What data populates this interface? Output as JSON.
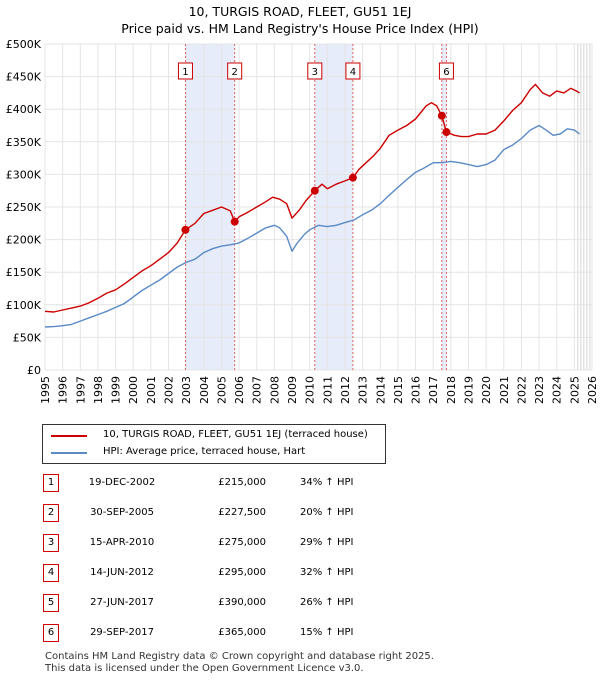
{
  "title": {
    "line1": "10, TURGIS ROAD, FLEET, GU51 1EJ",
    "line2": "Price paid vs. HM Land Registry's House Price Index (HPI)"
  },
  "chart_data": {
    "type": "line",
    "xlim": [
      1995,
      2026
    ],
    "ylim": [
      0,
      500000
    ],
    "xticks": [
      "1995",
      "1996",
      "1997",
      "1998",
      "1999",
      "2000",
      "2001",
      "2002",
      "2003",
      "2004",
      "2005",
      "2006",
      "2007",
      "2008",
      "2009",
      "2010",
      "2011",
      "2012",
      "2013",
      "2014",
      "2015",
      "2016",
      "2017",
      "2018",
      "2019",
      "2020",
      "2021",
      "2022",
      "2023",
      "2024",
      "2025",
      "2026"
    ],
    "yticks": [
      {
        "value": 0,
        "label": "£0"
      },
      {
        "value": 50000,
        "label": "£50K"
      },
      {
        "value": 100000,
        "label": "£100K"
      },
      {
        "value": 150000,
        "label": "£150K"
      },
      {
        "value": 200000,
        "label": "£200K"
      },
      {
        "value": 250000,
        "label": "£250K"
      },
      {
        "value": 300000,
        "label": "£300K"
      },
      {
        "value": 350000,
        "label": "£350K"
      },
      {
        "value": 400000,
        "label": "£400K"
      },
      {
        "value": 450000,
        "label": "£450K"
      },
      {
        "value": 500000,
        "label": "£500K"
      }
    ],
    "series": [
      {
        "name": "10, TURGIS ROAD, FLEET, GU51 1EJ (terraced house)",
        "color": "#cc0000",
        "x": [
          1995.0,
          1995.5,
          1996.0,
          1996.5,
          1997.0,
          1997.5,
          1998.0,
          1998.5,
          1999.0,
          1999.5,
          2000.0,
          2000.5,
          2001.0,
          2001.5,
          2002.0,
          2002.5,
          2002.96,
          2003.5,
          2004.0,
          2004.5,
          2005.0,
          2005.5,
          2005.75,
          2006.0,
          2006.5,
          2007.0,
          2007.5,
          2007.9,
          2008.3,
          2008.7,
          2009.0,
          2009.4,
          2009.8,
          2010.29,
          2010.7,
          2011.0,
          2011.5,
          2012.0,
          2012.45,
          2012.8,
          2013.2,
          2013.6,
          2014.0,
          2014.5,
          2015.0,
          2015.5,
          2016.0,
          2016.3,
          2016.6,
          2016.9,
          2017.2,
          2017.49,
          2017.75,
          2018.2,
          2018.6,
          2019.0,
          2019.5,
          2020.0,
          2020.5,
          2021.0,
          2021.5,
          2022.0,
          2022.5,
          2022.8,
          2023.2,
          2023.6,
          2024.0,
          2024.4,
          2024.8,
          2025.1,
          2025.3
        ],
        "values": [
          90000,
          89000,
          92000,
          95000,
          98000,
          103000,
          110000,
          118000,
          123000,
          132000,
          142000,
          152000,
          160000,
          170000,
          180000,
          195000,
          215000,
          225000,
          240000,
          245000,
          250000,
          244000,
          227500,
          235000,
          242000,
          250000,
          258000,
          265000,
          262000,
          255000,
          233000,
          245000,
          260000,
          275000,
          285000,
          278000,
          285000,
          290000,
          295000,
          308000,
          318000,
          328000,
          340000,
          360000,
          368000,
          375000,
          385000,
          395000,
          405000,
          410000,
          405000,
          390000,
          365000,
          360000,
          358000,
          358000,
          362000,
          362000,
          368000,
          382000,
          398000,
          410000,
          430000,
          438000,
          425000,
          420000,
          428000,
          425000,
          432000,
          428000,
          425000
        ]
      },
      {
        "name": "HPI: Average price, terraced house, Hart",
        "color": "#5a8ac6",
        "x": [
          1995.0,
          1995.5,
          1996.0,
          1996.5,
          1997.0,
          1997.5,
          1998.0,
          1998.5,
          1999.0,
          1999.5,
          2000.0,
          2000.5,
          2001.0,
          2001.5,
          2002.0,
          2002.5,
          2003.0,
          2003.5,
          2004.0,
          2004.5,
          2005.0,
          2005.5,
          2006.0,
          2006.5,
          2007.0,
          2007.5,
          2008.0,
          2008.3,
          2008.7,
          2009.0,
          2009.3,
          2009.7,
          2010.0,
          2010.5,
          2011.0,
          2011.5,
          2012.0,
          2012.5,
          2013.0,
          2013.5,
          2014.0,
          2014.5,
          2015.0,
          2015.5,
          2016.0,
          2016.5,
          2017.0,
          2017.5,
          2018.0,
          2018.5,
          2019.0,
          2019.5,
          2020.0,
          2020.5,
          2021.0,
          2021.5,
          2022.0,
          2022.5,
          2023.0,
          2023.4,
          2023.8,
          2024.2,
          2024.6,
          2025.0,
          2025.3
        ],
        "values": [
          66000,
          66500,
          68000,
          70000,
          75000,
          80000,
          85000,
          90000,
          96000,
          102000,
          112000,
          122000,
          130000,
          138000,
          148000,
          158000,
          165000,
          170000,
          180000,
          186000,
          190000,
          192000,
          195000,
          202000,
          210000,
          218000,
          222000,
          218000,
          205000,
          182000,
          195000,
          208000,
          215000,
          222000,
          220000,
          222000,
          226000,
          230000,
          238000,
          245000,
          255000,
          268000,
          280000,
          292000,
          303000,
          310000,
          318000,
          318000,
          320000,
          318000,
          315000,
          312000,
          315000,
          322000,
          338000,
          345000,
          355000,
          368000,
          375000,
          368000,
          360000,
          362000,
          370000,
          368000,
          362000
        ]
      }
    ],
    "transactions": [
      {
        "id": "1",
        "date": "19-DEC-2002",
        "price": "£215,000",
        "hpi": "34% ↑ HPI",
        "x": 2002.96,
        "value": 215000
      },
      {
        "id": "2",
        "date": "30-SEP-2005",
        "price": "£227,500",
        "hpi": "20% ↑ HPI",
        "x": 2005.75,
        "value": 227500
      },
      {
        "id": "3",
        "date": "15-APR-2010",
        "price": "£275,000",
        "hpi": "29% ↑ HPI",
        "x": 2010.29,
        "value": 275000
      },
      {
        "id": "4",
        "date": "14-JUN-2012",
        "price": "£295,000",
        "hpi": "32% ↑ HPI",
        "x": 2012.45,
        "value": 295000
      },
      {
        "id": "5",
        "date": "27-JUN-2017",
        "price": "£390,000",
        "hpi": "26% ↑ HPI",
        "x": 2017.49,
        "value": 390000
      },
      {
        "id": "6",
        "date": "29-SEP-2017",
        "price": "£365,000",
        "hpi": "15% ↑ HPI",
        "x": 2017.75,
        "value": 365000
      }
    ],
    "shaded_periods": [
      [
        2002.96,
        2005.75
      ],
      [
        2010.29,
        2012.45
      ],
      [
        2017.49,
        2017.75
      ]
    ],
    "chart_labels": [
      "1",
      "2",
      "3",
      "4",
      "6"
    ],
    "forecast_from": 2025.2
  },
  "legend": {
    "items": [
      {
        "label": "10, TURGIS ROAD, FLEET, GU51 1EJ (terraced house)",
        "color": "#cc0000"
      },
      {
        "label": "HPI: Average price, terraced house, Hart",
        "color": "#5a8ac6"
      }
    ]
  },
  "footer": {
    "line1": "Contains HM Land Registry data © Crown copyright and database right 2025.",
    "line2": "This data is licensed under the Open Government Licence v3.0."
  }
}
